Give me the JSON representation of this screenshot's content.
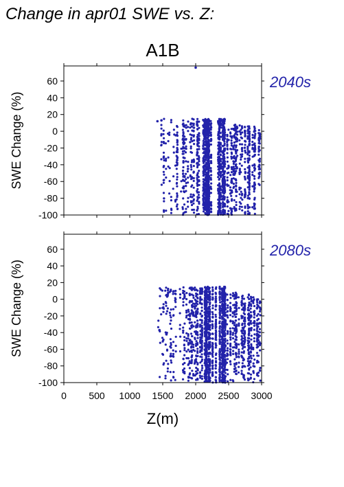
{
  "page": {
    "title": "Change in apr01 SWE vs. Z:",
    "scenario": "A1B"
  },
  "colors": {
    "points": "#2222aa",
    "period_label": "#2222aa",
    "axis": "#000000",
    "background": "#ffffff"
  },
  "chart_data": [
    {
      "type": "scatter",
      "panel_label": "2040s",
      "xlabel": "",
      "ylabel": "SWE Change (%)",
      "xlim": [
        0,
        3000
      ],
      "ylim": [
        -100,
        78
      ],
      "x_ticks": [],
      "y_ticks": [
        60,
        40,
        20,
        0,
        -20,
        -40,
        -60,
        -80,
        -100
      ],
      "grid": false,
      "clusters": [
        {
          "x": [
            1450,
            1550
          ],
          "y": [
            -100,
            15
          ],
          "count": 40,
          "dense": false
        },
        {
          "x": [
            1550,
            1800
          ],
          "y": [
            -100,
            15
          ],
          "count": 70,
          "dense": false
        },
        {
          "x": [
            1800,
            2000
          ],
          "y": [
            -100,
            15
          ],
          "count": 160,
          "dense": false
        },
        {
          "x": [
            2000,
            2150
          ],
          "y": [
            -100,
            15
          ],
          "count": 240,
          "dense": false
        },
        {
          "x": [
            2150,
            2450
          ],
          "y": [
            -100,
            15
          ],
          "count": 900,
          "dense": true
        },
        {
          "x": [
            2450,
            2700
          ],
          "y": [
            -100,
            8
          ],
          "count": 220,
          "dense": false
        },
        {
          "x": [
            2700,
            2900
          ],
          "y": [
            -100,
            6
          ],
          "count": 220,
          "dense": false
        },
        {
          "x": [
            2900,
            3000
          ],
          "y": [
            -65,
            2
          ],
          "count": 60,
          "dense": false
        }
      ],
      "outliers": [
        {
          "x": 2000,
          "y": 76
        },
        {
          "x": 1420,
          "y": 12
        },
        {
          "x": 1480,
          "y": 13
        }
      ]
    },
    {
      "type": "scatter",
      "panel_label": "2080s",
      "xlabel": "Z(m)",
      "ylabel": "SWE Change (%)",
      "xlim": [
        0,
        3000
      ],
      "ylim": [
        -100,
        78
      ],
      "x_ticks": [
        0,
        500,
        1000,
        1500,
        2000,
        2500,
        3000
      ],
      "y_ticks": [
        60,
        40,
        20,
        0,
        -20,
        -40,
        -60,
        -80,
        -100
      ],
      "grid": false,
      "clusters": [
        {
          "x": [
            1400,
            1550
          ],
          "y": [
            -100,
            14
          ],
          "count": 30,
          "dense": false
        },
        {
          "x": [
            1550,
            1800
          ],
          "y": [
            -100,
            15
          ],
          "count": 80,
          "dense": false
        },
        {
          "x": [
            1800,
            2000
          ],
          "y": [
            -100,
            15
          ],
          "count": 170,
          "dense": false
        },
        {
          "x": [
            2000,
            2150
          ],
          "y": [
            -100,
            15
          ],
          "count": 260,
          "dense": false
        },
        {
          "x": [
            2150,
            2450
          ],
          "y": [
            -100,
            15
          ],
          "count": 950,
          "dense": true
        },
        {
          "x": [
            2450,
            2700
          ],
          "y": [
            -100,
            8
          ],
          "count": 240,
          "dense": false
        },
        {
          "x": [
            2700,
            2900
          ],
          "y": [
            -100,
            6
          ],
          "count": 240,
          "dense": false
        },
        {
          "x": [
            2900,
            3000
          ],
          "y": [
            -100,
            0
          ],
          "count": 80,
          "dense": false
        }
      ],
      "outliers": [
        {
          "x": 1450,
          "y": -37
        }
      ]
    }
  ]
}
